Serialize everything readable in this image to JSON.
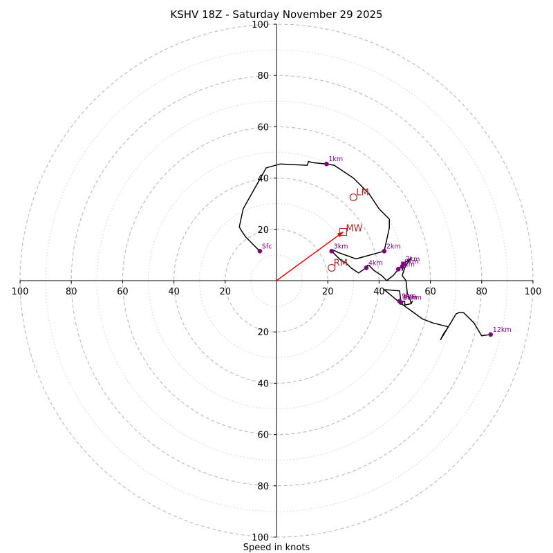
{
  "chart_data": {
    "type": "hodograph",
    "title": "KSHV 18Z - Saturday November 29 2025",
    "xlabel": "Speed in knots",
    "units": "knots",
    "range": [
      -100,
      100
    ],
    "rings_major": [
      20,
      40,
      60,
      80,
      100
    ],
    "rings_minor": [
      10,
      30,
      50,
      70,
      90
    ],
    "tick_labels": {
      "top": [
        "20",
        "40",
        "60",
        "80",
        "100"
      ],
      "bottom": [
        "20",
        "40",
        "60",
        "80",
        "100"
      ],
      "left": [
        "100",
        "80",
        "60",
        "40",
        "20"
      ],
      "right": [
        "20",
        "40",
        "60",
        "80",
        "100"
      ]
    },
    "tick_values": {
      "top": [
        20,
        40,
        60,
        80,
        100
      ],
      "bottom": [
        20,
        40,
        60,
        80,
        100
      ],
      "left": [
        100,
        80,
        60,
        40,
        20
      ],
      "right": [
        20,
        40,
        60,
        80,
        100
      ]
    },
    "trace": [
      [
        -6.5,
        11.5
      ],
      [
        -9,
        14
      ],
      [
        -12,
        17
      ],
      [
        -14,
        20
      ],
      [
        -14.5,
        21
      ],
      [
        -13,
        28
      ],
      [
        -4,
        44
      ],
      [
        1.5,
        45.5
      ],
      [
        12,
        45
      ],
      [
        12.5,
        46.5
      ],
      [
        14,
        46
      ],
      [
        19.5,
        45.5
      ],
      [
        22.5,
        45
      ],
      [
        30,
        40
      ],
      [
        36,
        34
      ],
      [
        40,
        28
      ],
      [
        44,
        24
      ],
      [
        44,
        20.5
      ],
      [
        43,
        16
      ],
      [
        42,
        11.5
      ],
      [
        31,
        8.5
      ],
      [
        24,
        11
      ],
      [
        22,
        12
      ],
      [
        21.5,
        11.5
      ],
      [
        25,
        8
      ],
      [
        27,
        7
      ],
      [
        29,
        5
      ],
      [
        32,
        3
      ],
      [
        35,
        5
      ],
      [
        35.5,
        6
      ],
      [
        36,
        6
      ],
      [
        38,
        4
      ],
      [
        41,
        2
      ],
      [
        43,
        0
      ],
      [
        45.5,
        2
      ],
      [
        48,
        5
      ],
      [
        49.5,
        6
      ],
      [
        49,
        4
      ],
      [
        50,
        7
      ],
      [
        51,
        7.5
      ],
      [
        52.5,
        9
      ],
      [
        51.5,
        7.5
      ],
      [
        50,
        5
      ],
      [
        49,
        2
      ],
      [
        50.5,
        0
      ],
      [
        51,
        -5
      ],
      [
        52,
        -7
      ],
      [
        52.5,
        -9
      ],
      [
        53,
        -8
      ],
      [
        52.5,
        -9
      ],
      [
        50,
        -9.5
      ],
      [
        50,
        -8
      ],
      [
        48.5,
        -8
      ],
      [
        48,
        -4
      ],
      [
        42,
        -3.5
      ],
      [
        45,
        -6
      ],
      [
        48,
        -8.5
      ],
      [
        57,
        -15
      ],
      [
        61,
        -16.5
      ],
      [
        67,
        -18
      ],
      [
        64,
        -23
      ],
      [
        65,
        -21
      ],
      [
        67,
        -18
      ],
      [
        70,
        -13
      ],
      [
        71,
        -12.5
      ],
      [
        73,
        -12.5
      ],
      [
        77,
        -16.5
      ],
      [
        80,
        -21.5
      ],
      [
        83.5,
        -21
      ]
    ],
    "points": [
      {
        "label": "Sfc",
        "u": -6.5,
        "v": 11.5
      },
      {
        "label": "1km",
        "u": 19.5,
        "v": 45.5
      },
      {
        "label": "2km",
        "u": 42,
        "v": 11.5
      },
      {
        "label": "3km",
        "u": 21.5,
        "v": 11.5
      },
      {
        "label": "4km",
        "u": 35,
        "v": 5
      },
      {
        "label": "5km",
        "u": 47.5,
        "v": 4.5
      },
      {
        "label": "6km",
        "u": 49,
        "v": 5.5
      },
      {
        "label": "7km",
        "u": 49.5,
        "v": 6.5
      },
      {
        "label": "8km",
        "u": 48.5,
        "v": -8.5
      },
      {
        "label": "9km",
        "u": 48,
        "v": -8
      },
      {
        "label": "10km",
        "u": 48.5,
        "v": -8.5
      },
      {
        "label": "12km",
        "u": 83.5,
        "v": -21
      }
    ],
    "storm_motion": {
      "MW": {
        "label": "MW",
        "u": 26,
        "v": 19
      },
      "LM": {
        "label": "LM",
        "u": 30,
        "v": 32.5
      },
      "RM": {
        "label": "RM",
        "u": 21.5,
        "v": 5
      }
    },
    "colors": {
      "trace": "#000000",
      "points": "#800080",
      "motion": "#b22222",
      "arrow": "#ff0000",
      "grid": "#bdbdbd"
    }
  }
}
